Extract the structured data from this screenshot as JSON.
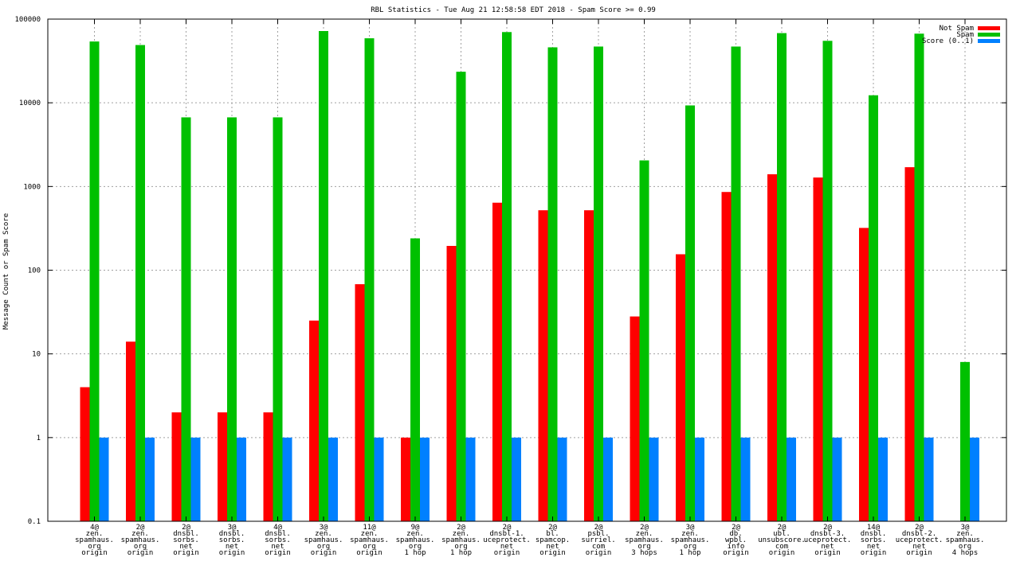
{
  "chart_data": {
    "type": "bar",
    "scale": "log",
    "title": "RBL Statistics - Tue Aug 21 12:58:58 EDT 2018 - Spam Score >= 0.99",
    "ylabel": "Message Count or Spam Score",
    "xlabel": "",
    "ylim": [
      0.1,
      100000
    ],
    "yticks": [
      "0.1",
      "1",
      "10",
      "100",
      "1000",
      "10000",
      "100000"
    ],
    "grid": true,
    "legend_position": "top-right",
    "categories": [
      [
        "4@",
        "zen.",
        "spamhaus.",
        "org",
        "origin"
      ],
      [
        "2@",
        "zen.",
        "spamhaus.",
        "org",
        "origin"
      ],
      [
        "2@",
        "dnsbl.",
        "sorbs.",
        "net",
        "origin"
      ],
      [
        "3@",
        "dnsbl.",
        "sorbs.",
        "net",
        "origin"
      ],
      [
        "4@",
        "dnsbl.",
        "sorbs.",
        "net",
        "origin"
      ],
      [
        "3@",
        "zen.",
        "spamhaus.",
        "org",
        "origin"
      ],
      [
        "11@",
        "zen.",
        "spamhaus.",
        "org",
        "origin"
      ],
      [
        "9@",
        "zen.",
        "spamhaus.",
        "org",
        "1 hop"
      ],
      [
        "2@",
        "zen.",
        "spamhaus.",
        "org",
        "1 hop"
      ],
      [
        "2@",
        "dnsbl-1.",
        "uceprotect.",
        "net",
        "origin"
      ],
      [
        "2@",
        "bl.",
        "spamcop.",
        "net",
        "origin"
      ],
      [
        "2@",
        "psbl.",
        "surriel.",
        "com",
        "origin"
      ],
      [
        "2@",
        "zen.",
        "spamhaus.",
        "org",
        "3 hops"
      ],
      [
        "3@",
        "zen.",
        "spamhaus.",
        "org",
        "1 hop"
      ],
      [
        "2@",
        "db.",
        "wpbl.",
        "info",
        "origin"
      ],
      [
        "2@",
        "ubl.",
        "unsubscore.",
        "com",
        "origin"
      ],
      [
        "2@",
        "dnsbl-3.",
        "uceprotect.",
        "net",
        "origin"
      ],
      [
        "14@",
        "dnsbl.",
        "sorbs.",
        "net",
        "origin"
      ],
      [
        "2@",
        "dnsbl-2.",
        "uceprotect.",
        "net",
        "origin"
      ],
      [
        "3@",
        "zen.",
        "spamhaus.",
        "org",
        "4 hops"
      ]
    ],
    "series": [
      {
        "name": "Not Spam",
        "color": "#ff0000",
        "values": [
          4,
          14,
          2,
          2,
          2,
          25,
          68,
          1,
          195,
          640,
          520,
          520,
          28,
          155,
          860,
          1400,
          1280,
          320,
          1700,
          null
        ]
      },
      {
        "name": "Spam",
        "color": "#00c000",
        "values": [
          54000,
          49000,
          6700,
          6700,
          6700,
          72000,
          59000,
          240,
          23500,
          70000,
          46000,
          47000,
          2050,
          9300,
          47000,
          68000,
          55000,
          12300,
          67000,
          8
        ]
      },
      {
        "name": "Score (0..1)",
        "color": "#0080ff",
        "values": [
          1,
          1,
          1,
          1,
          1,
          1,
          1,
          1,
          1,
          1,
          1,
          1,
          1,
          1,
          1,
          1,
          1,
          1,
          1,
          1
        ]
      }
    ]
  }
}
